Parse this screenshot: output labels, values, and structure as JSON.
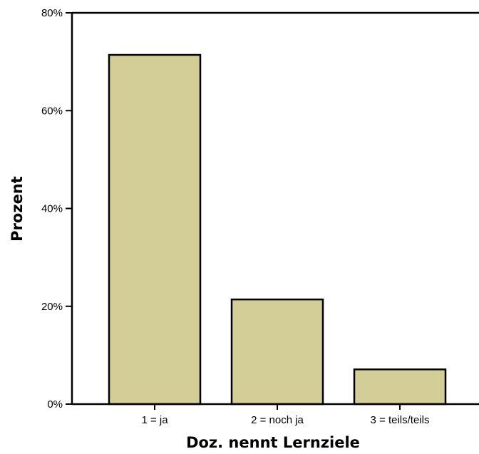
{
  "chart_data": {
    "type": "bar",
    "categories": [
      "1 = ja",
      "2 = noch ja",
      "3 = teils/teils"
    ],
    "values": [
      71.4,
      21.4,
      7.1
    ],
    "xlabel": "Doz. nennt Lernziele",
    "ylabel": "Prozent",
    "ylim": [
      0,
      80
    ],
    "yticks": [
      "0%",
      "20%",
      "40%",
      "60%",
      "80%"
    ],
    "grid": false,
    "bar_color": "#d3cd98",
    "bar_edge_color": "#000000"
  }
}
